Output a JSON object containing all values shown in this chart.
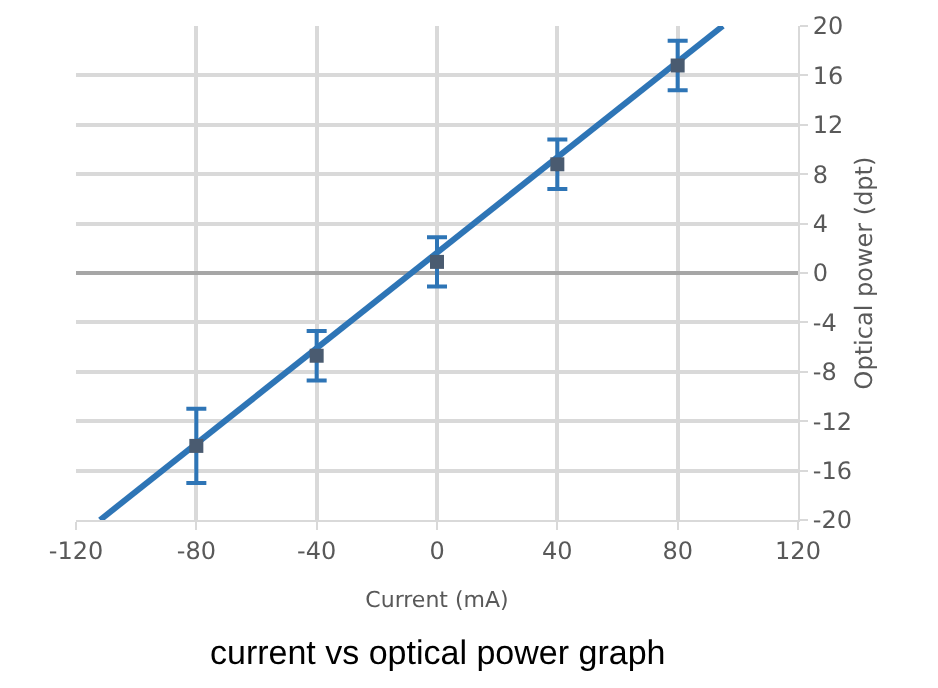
{
  "chart_data": {
    "type": "scatter",
    "xlabel": "Current (mA)",
    "ylabel": "Optical power (dpt)",
    "annotations": [
      "current vs optical power graph"
    ],
    "xlim": [
      -120,
      120
    ],
    "xticks": [
      -120,
      -80,
      -40,
      0,
      40,
      80,
      120
    ],
    "ylim": [
      -20,
      20
    ],
    "yticks": [
      -20,
      -16,
      -12,
      -8,
      -4,
      0,
      4,
      8,
      12,
      16,
      20
    ],
    "grid": true,
    "marker": "square",
    "series": [
      {
        "color": "#2e75b6",
        "x": [
          -112,
          95
        ],
        "values": [
          -20,
          20
        ],
        "marker": "none",
        "line_style": "solid",
        "type": "line"
      },
      {
        "type": "scatter",
        "color": "#4a5b70",
        "x": [
          -80,
          -40,
          0,
          40,
          80
        ],
        "values": [
          -14,
          -6.7,
          0.9,
          8.8,
          16.8
        ],
        "errors": [
          3,
          2,
          2,
          2,
          2
        ]
      }
    ]
  }
}
